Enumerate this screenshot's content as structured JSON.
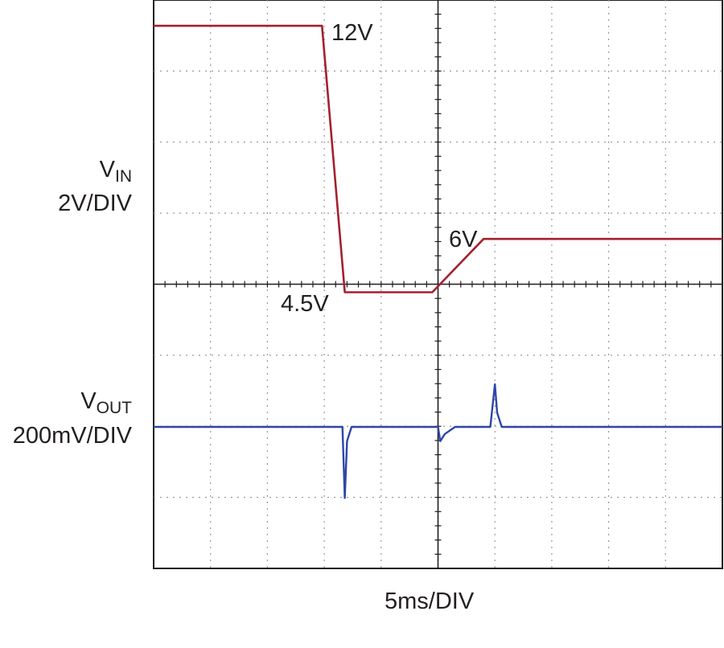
{
  "chart_data": {
    "type": "line",
    "xlabel": "5ms/DIV",
    "x_scale": "5 ms per division",
    "divisions": {
      "x": 10,
      "y": 8
    },
    "grid": true,
    "series": [
      {
        "channel": "V_IN",
        "scale": "2V/DIV",
        "color": "#a3212e",
        "unit": "V",
        "x_ms": [
          0,
          14.8,
          16.8,
          24.5,
          29,
          50
        ],
        "y": [
          12,
          12,
          4.5,
          4.5,
          6,
          6
        ]
      },
      {
        "channel": "V_OUT",
        "scale": "200mV/DIV",
        "color": "#2e46a6",
        "unit": "mV",
        "x_ms": [
          0,
          16.2,
          16.6,
          16.8,
          17.0,
          17.4,
          25.0,
          25.2,
          25.6,
          26.5,
          29.6,
          30.0,
          30.2,
          30.6,
          31.0,
          50
        ],
        "y": [
          0,
          0,
          0,
          -200,
          -40,
          0,
          0,
          -40,
          -20,
          0,
          0,
          120,
          40,
          0,
          0,
          0
        ]
      }
    ],
    "annotations": [
      "12V",
      "4.5V",
      "6V"
    ]
  },
  "labels": {
    "vin_main": "V",
    "vin_sub": "IN",
    "vin_scale": "2V/DIV",
    "vout_main": "V",
    "vout_sub": "OUT",
    "vout_scale": "200mV/DIV",
    "ann_12v": "12V",
    "ann_45v": "4.5V",
    "ann_6v": "6V",
    "xlabel": "5ms/DIV"
  }
}
